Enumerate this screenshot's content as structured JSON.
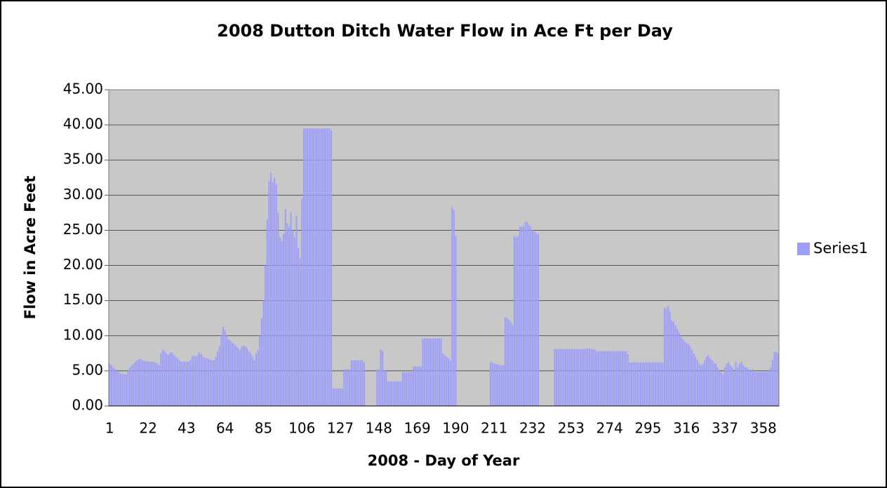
{
  "chart_data": {
    "type": "bar",
    "title": "2008 Dutton Ditch Water Flow in Ace Ft per Day",
    "x_label": "2008 - Day of Year",
    "y_label": "Flow in Acre Feet",
    "legend": "right",
    "grid": true,
    "ylim": [
      0,
      45
    ],
    "yticks": [
      {
        "value": 0,
        "label": "0.00"
      },
      {
        "value": 5,
        "label": "5.00"
      },
      {
        "value": 10,
        "label": "10.00"
      },
      {
        "value": 15,
        "label": "15.00"
      },
      {
        "value": 20,
        "label": "20.00"
      },
      {
        "value": 25,
        "label": "25.00"
      },
      {
        "value": 30,
        "label": "30.00"
      },
      {
        "value": 35,
        "label": "35.00"
      },
      {
        "value": 40,
        "label": "40.00"
      },
      {
        "value": 45,
        "label": "45.00"
      }
    ],
    "categories": [
      1,
      null,
      null,
      null,
      null,
      null,
      null,
      null,
      null,
      null,
      null,
      null,
      null,
      null,
      null,
      null,
      null,
      null,
      null,
      null,
      null,
      22,
      null,
      null,
      null,
      null,
      null,
      null,
      null,
      null,
      null,
      null,
      null,
      null,
      null,
      null,
      null,
      null,
      null,
      null,
      null,
      null,
      43,
      null,
      null,
      null,
      null,
      null,
      null,
      null,
      null,
      null,
      null,
      null,
      null,
      null,
      null,
      null,
      null,
      null,
      null,
      null,
      null,
      64,
      null,
      null,
      null,
      null,
      null,
      null,
      null,
      null,
      null,
      null,
      null,
      null,
      null,
      null,
      null,
      null,
      null,
      null,
      null,
      null,
      85,
      null,
      null,
      null,
      null,
      null,
      null,
      null,
      null,
      null,
      null,
      null,
      null,
      null,
      null,
      null,
      null,
      null,
      null,
      null,
      null,
      106,
      null,
      null,
      null,
      null,
      null,
      null,
      null,
      null,
      null,
      null,
      null,
      null,
      null,
      null,
      null,
      null,
      null,
      null,
      null,
      null,
      127,
      null,
      null,
      null,
      null,
      null,
      null,
      null,
      null,
      null,
      null,
      null,
      null,
      null,
      null,
      null,
      null,
      null,
      null,
      null,
      null,
      148,
      null,
      null,
      null,
      null,
      null,
      null,
      null,
      null,
      null,
      null,
      null,
      null,
      null,
      null,
      null,
      null,
      null,
      null,
      null,
      null,
      169,
      null,
      null,
      null,
      null,
      null,
      null,
      null,
      null,
      null,
      null,
      null,
      null,
      null,
      null,
      null,
      null,
      null,
      null,
      null,
      null,
      190,
      null,
      null,
      null,
      null,
      null,
      null,
      null,
      null,
      null,
      null,
      null,
      null,
      null,
      null,
      null,
      null,
      null,
      null,
      null,
      null,
      211,
      null,
      null,
      null,
      null,
      null,
      null,
      null,
      null,
      null,
      null,
      null,
      null,
      null,
      null,
      null,
      null,
      null,
      null,
      null,
      null,
      232,
      null,
      null,
      null,
      null,
      null,
      null,
      null,
      null,
      null,
      null,
      null,
      null,
      null,
      null,
      null,
      null,
      null,
      null,
      null,
      null,
      253,
      null,
      null,
      null,
      null,
      null,
      null,
      null,
      null,
      null,
      null,
      null,
      null,
      null,
      null,
      null,
      null,
      null,
      null,
      null,
      null,
      274,
      null,
      null,
      null,
      null,
      null,
      null,
      null,
      null,
      null,
      null,
      null,
      null,
      null,
      null,
      null,
      null,
      null,
      null,
      null,
      null,
      295,
      null,
      null,
      null,
      null,
      null,
      null,
      null,
      null,
      null,
      null,
      null,
      null,
      null,
      null,
      null,
      null,
      null,
      null,
      null,
      null,
      316,
      null,
      null,
      null,
      null,
      null,
      null,
      null,
      null,
      null,
      null,
      null,
      null,
      null,
      null,
      null,
      null,
      null,
      null,
      null,
      null,
      337,
      null,
      null,
      null,
      null,
      null,
      null,
      null,
      null,
      null,
      null,
      null,
      null,
      null,
      null,
      null,
      null,
      null,
      null,
      null,
      null,
      358,
      null,
      null,
      null,
      null,
      null,
      null,
      null,
      null
    ],
    "series": [
      {
        "name": "Series1",
        "color": "#9d9dfa",
        "values": [
          6.0,
          5.8,
          5.5,
          5.2,
          5.0,
          4.8,
          4.6,
          4.6,
          4.5,
          4.5,
          5.0,
          5.5,
          5.8,
          6.0,
          6.3,
          6.5,
          6.7,
          6.7,
          6.5,
          6.4,
          6.4,
          6.3,
          6.3,
          6.3,
          6.2,
          6.2,
          6.0,
          5.8,
          7.5,
          8.0,
          7.8,
          7.5,
          7.3,
          7.6,
          7.6,
          7.3,
          7.0,
          6.8,
          6.5,
          6.3,
          6.3,
          6.3,
          6.3,
          6.3,
          6.5,
          7.0,
          7.2,
          7.0,
          7.3,
          7.6,
          7.4,
          7.0,
          6.8,
          6.8,
          6.7,
          6.6,
          6.5,
          6.5,
          7.0,
          7.8,
          8.5,
          10.0,
          11.3,
          10.8,
          10.0,
          9.5,
          9.3,
          9.0,
          8.8,
          8.5,
          8.3,
          8.0,
          8.5,
          8.6,
          8.5,
          8.2,
          7.8,
          7.5,
          7.0,
          6.5,
          7.5,
          8.0,
          10.0,
          12.5,
          15.0,
          20.0,
          26.5,
          32.0,
          33.2,
          31.8,
          32.5,
          31.5,
          27.5,
          24.0,
          23.5,
          24.5,
          28.0,
          26.0,
          25.5,
          27.5,
          25.0,
          24.0,
          27.0,
          22.5,
          21.0,
          29.5,
          39.5,
          39.5,
          39.5,
          39.5,
          39.5,
          39.5,
          39.5,
          39.5,
          39.5,
          39.5,
          39.5,
          39.5,
          39.5,
          39.5,
          39.5,
          39.2,
          2.5,
          2.5,
          2.5,
          2.5,
          2.5,
          2.5,
          5.2,
          5.2,
          5.2,
          5.2,
          6.5,
          6.5,
          6.5,
          6.5,
          6.5,
          6.5,
          6.5,
          6.2,
          0,
          0,
          0,
          0,
          0,
          0,
          5.2,
          5.2,
          8.0,
          7.8,
          5.0,
          5.0,
          3.5,
          3.5,
          3.5,
          3.5,
          3.5,
          3.5,
          3.5,
          3.5,
          4.8,
          4.8,
          4.8,
          4.8,
          4.8,
          4.8,
          5.6,
          5.6,
          5.6,
          5.6,
          5.6,
          9.6,
          9.6,
          9.6,
          9.6,
          9.6,
          9.6,
          9.6,
          9.6,
          9.6,
          9.6,
          9.6,
          7.5,
          7.2,
          7.0,
          6.8,
          6.5,
          28.3,
          27.8,
          24.2,
          0,
          0,
          0,
          0,
          0,
          0,
          0,
          0,
          0,
          0,
          0,
          0,
          0,
          0,
          0,
          0,
          0,
          0,
          6.2,
          6.2,
          6.0,
          6.0,
          5.9,
          5.8,
          5.8,
          5.8,
          12.6,
          12.6,
          12.3,
          12.0,
          11.5,
          24.2,
          24.0,
          24.2,
          25.5,
          25.5,
          25.6,
          26.2,
          26.2,
          25.8,
          25.5,
          25.0,
          24.8,
          24.6,
          24.5,
          0,
          0,
          0,
          0,
          0,
          0,
          0,
          0,
          8.1,
          8.1,
          8.1,
          8.1,
          8.1,
          8.1,
          8.1,
          8.1,
          8.1,
          8.1,
          8.1,
          8.1,
          8.1,
          8.1,
          8.1,
          8.1,
          8.1,
          8.2,
          8.2,
          8.2,
          8.1,
          8.1,
          8.0,
          7.8,
          7.8,
          7.8,
          7.8,
          7.8,
          7.8,
          7.8,
          7.8,
          7.8,
          7.8,
          7.8,
          7.8,
          7.8,
          7.8,
          7.8,
          7.8,
          7.8,
          7.4,
          6.2,
          6.2,
          6.2,
          6.2,
          6.2,
          6.2,
          6.2,
          6.2,
          6.2,
          6.2,
          6.2,
          6.2,
          6.2,
          6.2,
          6.2,
          6.2,
          6.2,
          6.2,
          6.2,
          14.0,
          13.8,
          14.2,
          13.5,
          12.2,
          12.0,
          11.5,
          11.0,
          10.5,
          10.0,
          9.5,
          9.2,
          9.0,
          8.8,
          8.5,
          8.0,
          7.5,
          7.0,
          6.5,
          6.0,
          5.8,
          6.0,
          6.5,
          7.0,
          7.2,
          6.8,
          6.5,
          6.2,
          6.0,
          5.5,
          5.0,
          4.8,
          4.5,
          5.5,
          6.0,
          6.2,
          5.8,
          5.5,
          4.8,
          6.3,
          5.5,
          6.0,
          6.3,
          5.8,
          5.5,
          5.5,
          5.2,
          5.0,
          5.2,
          5.0,
          4.8,
          4.8,
          4.8,
          5.0,
          4.8,
          5.0,
          4.8,
          5.0,
          5.5,
          6.5,
          7.7,
          7.7,
          7.5
        ]
      }
    ]
  }
}
